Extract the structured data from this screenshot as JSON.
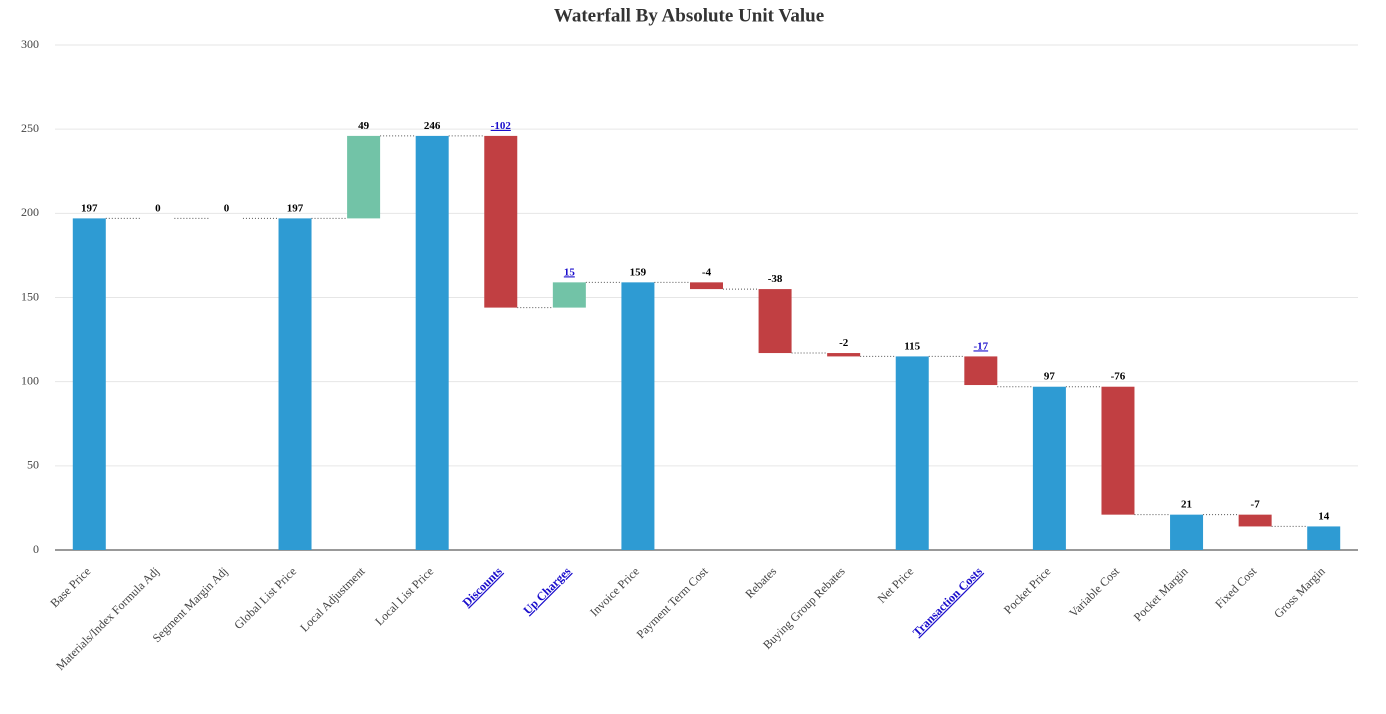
{
  "chart_data": {
    "type": "waterfall",
    "title": "Waterfall By Absolute Unit Value",
    "categories": [
      "Base Price",
      "Materials/Index Formula Adj",
      "Segment Margin Adj",
      "Global List Price",
      "Local Adjustment",
      "Local List Price",
      "Discounts",
      "Up Charges",
      "Invoice Price",
      "Payment Term Cost",
      "Rebates",
      "Buying Group Rebates",
      "Net Price",
      "Transaction Costs",
      "Pocket Price",
      "Variable Cost",
      "Pocket Margin",
      "Fixed Cost",
      "Gross Margin"
    ],
    "values": [
      197,
      0,
      0,
      197,
      49,
      246,
      -102,
      15,
      159,
      -4,
      -38,
      -2,
      115,
      -17,
      97,
      -76,
      21,
      -7,
      14
    ],
    "totals": [
      true,
      false,
      false,
      true,
      false,
      true,
      false,
      false,
      true,
      false,
      false,
      false,
      true,
      false,
      true,
      false,
      true,
      false,
      true
    ],
    "links": [
      false,
      false,
      false,
      false,
      false,
      false,
      true,
      true,
      false,
      false,
      false,
      false,
      false,
      true,
      false,
      false,
      false,
      false,
      false
    ],
    "colors": {
      "total": "#2e9bd3",
      "increase": "#72c3a7",
      "decrease": "#c13f42",
      "link": "#1a0dcc"
    },
    "ylim": [
      0,
      300
    ],
    "yticks": [
      0,
      50,
      100,
      150,
      200,
      250,
      300
    ],
    "grid": true
  }
}
